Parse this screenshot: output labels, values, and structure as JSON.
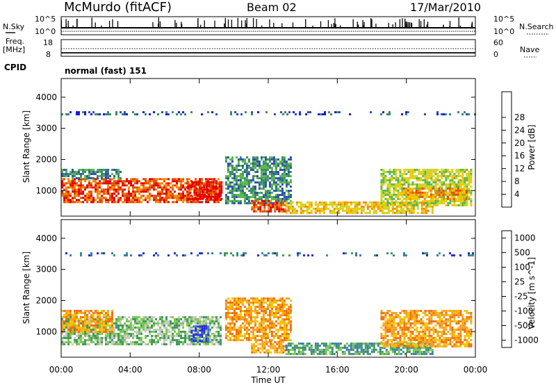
{
  "header": {
    "station": "McMurdo (fitACF)",
    "beam": "Beam 02",
    "date": "17/Mar/2010"
  },
  "left_labels": {
    "nsky": "N.Sky",
    "freq_line1": "Freq.",
    "freq_line2": "[MHz]",
    "cpid": "CPID"
  },
  "right_labels": {
    "nsearch": "N.Search",
    "nave": "Nave"
  },
  "noise_panel": {
    "tick_top": "10^5",
    "tick_bottom": "10^0",
    "tick_top_r": "10^5",
    "tick_bottom_r": "10^0"
  },
  "freq_panel": {
    "tick_top": "18",
    "tick_bottom": "8",
    "tick_top_r": "60",
    "tick_bottom_r": "0"
  },
  "cpid_text": "normal (fast) 151",
  "axes": {
    "ylabel": "Slant Range [km]",
    "xlabel": "Time UT",
    "x_ticks": [
      "00:00",
      "04:00",
      "08:00",
      "12:00",
      "16:00",
      "20:00",
      "00:00"
    ],
    "y_ticks": [
      "1000",
      "2000",
      "3000",
      "4000"
    ]
  },
  "chart_data": [
    {
      "type": "heatmap",
      "title": "",
      "xlabel": "Time UT",
      "ylabel": "Slant Range [km]",
      "xlim": [
        0,
        24
      ],
      "ylim": [
        180,
        4600
      ],
      "colorbar_label": "Power [dB]",
      "colorbar_ticks": [
        "4",
        "8",
        "12",
        "16",
        "20",
        "24",
        "28"
      ],
      "colorbar_colors": [
        "#1a1ae6",
        "#2e4fb0",
        "#3a8a6a",
        "#58b848",
        "#c8d820",
        "#f5c400",
        "#f28a00",
        "#e84a00",
        "#e00000"
      ],
      "regions": [
        {
          "t": [
            0.0,
            9.2
          ],
          "r": [
            600,
            1400
          ],
          "level": 7
        },
        {
          "t": [
            0.0,
            3.5
          ],
          "r": [
            1400,
            1700
          ],
          "level": 2
        },
        {
          "t": [
            7.3,
            9.3
          ],
          "r": [
            700,
            1300
          ],
          "level": 8
        },
        {
          "t": [
            9.5,
            13.3
          ],
          "r": [
            600,
            2100
          ],
          "level": 2
        },
        {
          "t": [
            11.0,
            13.0
          ],
          "r": [
            300,
            700
          ],
          "level": 7
        },
        {
          "t": [
            13.0,
            21.5
          ],
          "r": [
            300,
            650
          ],
          "level": 5
        },
        {
          "t": [
            18.5,
            23.8
          ],
          "r": [
            500,
            1700
          ],
          "level": 4
        },
        {
          "t": [
            19.8,
            23.5
          ],
          "r": [
            700,
            1100
          ],
          "level": 6
        },
        {
          "t": [
            0.0,
            24.0
          ],
          "r": [
            3450,
            3550
          ],
          "level": 1
        }
      ]
    },
    {
      "type": "heatmap",
      "title": "",
      "xlabel": "Time UT",
      "ylabel": "Slant Range [km]",
      "xlim": [
        0,
        24
      ],
      "ylim": [
        180,
        4600
      ],
      "colorbar_label": "Velocity [m s^-1]",
      "colorbar_ticks": [
        "1000",
        "500",
        "100",
        "25",
        "-25",
        "-100",
        "-500",
        "-1000"
      ],
      "colorbar_colors": [
        "#2a2ae0",
        "#3a7ab8",
        "#3f9a5a",
        "#7ac84a",
        "#c8c8c8",
        "#f5c400",
        "#f5a020",
        "#f07010",
        "#e00000"
      ],
      "regions": [
        {
          "t": [
            0.0,
            9.2
          ],
          "r": [
            600,
            1500
          ],
          "level": 3
        },
        {
          "t": [
            0.0,
            3.0
          ],
          "r": [
            1000,
            1700
          ],
          "level": 6
        },
        {
          "t": [
            7.5,
            8.5
          ],
          "r": [
            700,
            1200
          ],
          "level": 0
        },
        {
          "t": [
            9.5,
            13.3
          ],
          "r": [
            700,
            2100
          ],
          "level": 6
        },
        {
          "t": [
            11.0,
            13.0
          ],
          "r": [
            300,
            700
          ],
          "level": 6
        },
        {
          "t": [
            13.0,
            21.5
          ],
          "r": [
            300,
            650
          ],
          "level": 2
        },
        {
          "t": [
            18.5,
            23.8
          ],
          "r": [
            500,
            1700
          ],
          "level": 6
        },
        {
          "t": [
            0.0,
            24.0
          ],
          "r": [
            3450,
            3550
          ],
          "level": 1
        }
      ]
    }
  ]
}
